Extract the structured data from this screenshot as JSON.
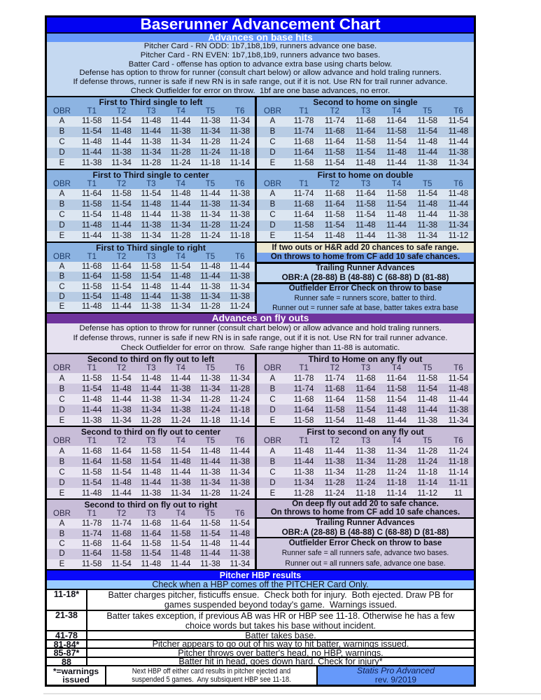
{
  "page_title": "Baserunner Advancement Chart",
  "col_headers": [
    "OBR",
    "T1",
    "T2",
    "T3",
    "T4",
    "T5",
    "T6"
  ],
  "base_hits": {
    "header": "Advances on base hits",
    "intro_lines": [
      "Pitcher Card - RN ODD: 1b7,1b8,1b9, runners advance one base.",
      "Pitcher Card - RN EVEN: 1b7,1b8,1b9, runners advance two bases.",
      "Batter Card - offense has option to advance extra base using charts below.",
      "Defense has option to throw for runner (consult chart below) or allow advance and hold traling runners.",
      "If defense throws, runner is safe if new RN is in safe range, out if it is not. Use RN for trail runner advance.",
      "Check Outfielder for error on throw.  1bf are one base advances, no error."
    ],
    "tables": {
      "first_third_left": {
        "title": "First to Third single to left",
        "rows": [
          [
            "A",
            "11-58",
            "11-54",
            "11-48",
            "11-44",
            "11-38",
            "11-34"
          ],
          [
            "B",
            "11-54",
            "11-48",
            "11-44",
            "11-38",
            "11-34",
            "11-38"
          ],
          [
            "C",
            "11-48",
            "11-44",
            "11-38",
            "11-34",
            "11-28",
            "11-24"
          ],
          [
            "D",
            "11-44",
            "11-38",
            "11-34",
            "11-28",
            "11-24",
            "11-18"
          ],
          [
            "E",
            "11-38",
            "11-34",
            "11-28",
            "11-24",
            "11-18",
            "11-14"
          ]
        ]
      },
      "second_home_single": {
        "title": "Second to home on single",
        "rows": [
          [
            "A",
            "11-78",
            "11-74",
            "11-68",
            "11-64",
            "11-58",
            "11-54"
          ],
          [
            "B",
            "11-74",
            "11-68",
            "11-64",
            "11-58",
            "11-54",
            "11-48"
          ],
          [
            "C",
            "11-68",
            "11-64",
            "11-58",
            "11-54",
            "11-48",
            "11-44"
          ],
          [
            "D",
            "11-64",
            "11-58",
            "11-54",
            "11-48",
            "11-44",
            "11-38"
          ],
          [
            "E",
            "11-58",
            "11-54",
            "11-48",
            "11-44",
            "11-38",
            "11-34"
          ]
        ]
      },
      "first_third_center": {
        "title": "First to Third single to center",
        "rows": [
          [
            "A",
            "11-64",
            "11-58",
            "11-54",
            "11-48",
            "11-44",
            "11-38"
          ],
          [
            "B",
            "11-58",
            "11-54",
            "11-48",
            "11-44",
            "11-38",
            "11-34"
          ],
          [
            "C",
            "11-54",
            "11-48",
            "11-44",
            "11-38",
            "11-34",
            "11-38"
          ],
          [
            "D",
            "11-48",
            "11-44",
            "11-38",
            "11-34",
            "11-28",
            "11-24"
          ],
          [
            "E",
            "11-44",
            "11-38",
            "11-34",
            "11-28",
            "11-24",
            "11-18"
          ]
        ]
      },
      "first_home_double": {
        "title": "First to home on double",
        "rows": [
          [
            "A",
            "11-74",
            "11-68",
            "11-64",
            "11-58",
            "11-54",
            "11-48"
          ],
          [
            "B",
            "11-68",
            "11-64",
            "11-58",
            "11-54",
            "11-48",
            "11-44"
          ],
          [
            "C",
            "11-64",
            "11-58",
            "11-54",
            "11-48",
            "11-44",
            "11-38"
          ],
          [
            "D",
            "11-58",
            "11-54",
            "11-48",
            "11-44",
            "11-38",
            "11-34"
          ],
          [
            "E",
            "11-54",
            "11-48",
            "11-44",
            "11-38",
            "11-34",
            "11-12"
          ]
        ]
      },
      "first_third_right": {
        "title": "First to Third single to right",
        "rows": [
          [
            "A",
            "11-68",
            "11-64",
            "11-58",
            "11-54",
            "11-48",
            "11-44"
          ],
          [
            "B",
            "11-64",
            "11-58",
            "11-54",
            "11-48",
            "11-44",
            "11-38"
          ],
          [
            "C",
            "11-58",
            "11-54",
            "11-48",
            "11-44",
            "11-38",
            "11-34"
          ],
          [
            "D",
            "11-54",
            "11-48",
            "11-44",
            "11-38",
            "11-34",
            "11-38"
          ],
          [
            "E",
            "11-48",
            "11-44",
            "11-38",
            "11-34",
            "11-28",
            "11-24"
          ]
        ]
      }
    },
    "notes": {
      "two_outs": "If two outs or H&R add 20 chances to safe range.",
      "cf_throws": "On throws to home from CF add 10 safe chances.",
      "trailing_title": "Trailing Runner Advances",
      "trailing_ranges": "OBR:A (28-88) B (48-88) C (68-88) D (81-88)",
      "error_title": "Outfielder Error Check on throw to base",
      "error_safe": "Runner safe = runners score, batter to third.",
      "error_out": "Runner out = runner safe at base, batter takes extra base"
    }
  },
  "fly_outs": {
    "header": "Advances on fly outs",
    "intro_lines": [
      "Defense has option to throw for runner (consult chart below) or allow advance and hold traling runners.",
      "If defense throws, runner is safe if new RN is in safe range, out if it is not. Use RN for trail runner advance.",
      "Check Outfielder for error on throw.  Safe range higher than 11-88 is automatic."
    ],
    "tables": {
      "second_third_left": {
        "title": "Second to third on fly out to left",
        "rows": [
          [
            "A",
            "11-58",
            "11-54",
            "11-48",
            "11-44",
            "11-38",
            "11-34"
          ],
          [
            "B",
            "11-54",
            "11-48",
            "11-44",
            "11-38",
            "11-34",
            "11-28"
          ],
          [
            "C",
            "11-48",
            "11-44",
            "11-38",
            "11-34",
            "11-28",
            "11-24"
          ],
          [
            "D",
            "11-44",
            "11-38",
            "11-34",
            "11-38",
            "11-24",
            "11-18"
          ],
          [
            "E",
            "11-38",
            "11-34",
            "11-28",
            "11-24",
            "11-18",
            "11-14"
          ]
        ]
      },
      "third_home_any": {
        "title": "Third to Home on any fly out",
        "rows": [
          [
            "A",
            "11-78",
            "11-74",
            "11-68",
            "11-64",
            "11-58",
            "11-54"
          ],
          [
            "B",
            "11-74",
            "11-68",
            "11-64",
            "11-58",
            "11-54",
            "11-48"
          ],
          [
            "C",
            "11-68",
            "11-64",
            "11-58",
            "11-54",
            "11-48",
            "11-44"
          ],
          [
            "D",
            "11-64",
            "11-58",
            "11-54",
            "11-48",
            "11-44",
            "11-38"
          ],
          [
            "E",
            "11-58",
            "11-54",
            "11-48",
            "11-44",
            "11-38",
            "11-34"
          ]
        ]
      },
      "second_third_center": {
        "title": "Second to third on fly out to center",
        "rows": [
          [
            "A",
            "11-68",
            "11-64",
            "11-58",
            "11-54",
            "11-48",
            "11-44"
          ],
          [
            "B",
            "11-64",
            "11-58",
            "11-54",
            "11-48",
            "11-44",
            "11-38"
          ],
          [
            "C",
            "11-58",
            "11-54",
            "11-48",
            "11-44",
            "11-38",
            "11-34"
          ],
          [
            "D",
            "11-54",
            "11-48",
            "11-44",
            "11-38",
            "11-34",
            "11-38"
          ],
          [
            "E",
            "11-48",
            "11-44",
            "11-38",
            "11-34",
            "11-28",
            "11-24"
          ]
        ]
      },
      "first_second_any": {
        "title": "First to second on any fly out",
        "rows": [
          [
            "A",
            "11-48",
            "11-44",
            "11-38",
            "11-34",
            "11-28",
            "11-24"
          ],
          [
            "B",
            "11-44",
            "11-38",
            "11-34",
            "11-28",
            "11-24",
            "11-18"
          ],
          [
            "C",
            "11-38",
            "11-34",
            "11-28",
            "11-24",
            "11-18",
            "11-14"
          ],
          [
            "D",
            "11-34",
            "11-28",
            "11-24",
            "11-18",
            "11-14",
            "11-11"
          ],
          [
            "E",
            "11-28",
            "11-24",
            "11-18",
            "11-14",
            "11-12",
            "11"
          ]
        ]
      },
      "second_third_right": {
        "title": "Second to third on fly out to right",
        "rows": [
          [
            "A",
            "11-78",
            "11-74",
            "11-68",
            "11-64",
            "11-58",
            "11-54"
          ],
          [
            "B",
            "11-74",
            "11-68",
            "11-64",
            "11-58",
            "11-54",
            "11-48"
          ],
          [
            "C",
            "11-68",
            "11-64",
            "11-58",
            "11-54",
            "11-48",
            "11-44"
          ],
          [
            "D",
            "11-64",
            "11-58",
            "11-54",
            "11-48",
            "11-44",
            "11-38"
          ],
          [
            "E",
            "11-58",
            "11-54",
            "11-48",
            "11-44",
            "11-38",
            "11-34"
          ]
        ]
      }
    },
    "notes": {
      "deep_fly": "On deep fly out add 20 to safe chance.",
      "cf_throws": "On throws to home from CF add 10 safe chances.",
      "trailing_title": "Trailing Runner Advances",
      "trailing_ranges": "OBR:A (28-88) B (48-88) C (68-88) D (81-88)",
      "error_title": "Outfielder Error Check on throw to base",
      "error_safe": "Runner safe = all runners safe, advance two bases.",
      "error_out": "Runner out = all runners safe, advance one base."
    }
  },
  "hbp": {
    "header": "Pitcher HBP results",
    "subheader": "Check when a HBP comes off the PITCHER Card Only.",
    "rows": [
      {
        "range": "11-18*",
        "lines": [
          "Batter charges pitcher, fisticuffs ensue.  Check both for injury.  Both ejected. Draw PB for",
          "games suspended beyond today's game.  Warnings issued."
        ]
      },
      {
        "range": "21-38",
        "lines": [
          "Batter takes exception, if previous AB was HR or HBP see 11-18. Otherwise he has a few",
          "choice words but takes his base without incident."
        ]
      },
      {
        "range": "41-78",
        "lines": [
          "Batter takes base."
        ]
      },
      {
        "range": "81-84*",
        "lines": [
          "Pitcher appears to go out of his way to hit batter, warnings issued."
        ]
      },
      {
        "range": "85-87*",
        "lines": [
          "Pitcher throws over batter's head, no HBP, warnings."
        ]
      },
      {
        "range": "88",
        "lines": [
          "Batter hit in head, goes down hard. Check for injury*"
        ]
      }
    ],
    "footer": {
      "left_lines": [
        "*=warnings",
        "issued"
      ],
      "middle_lines": [
        "Next HBP off either card results in pitcher ejected and",
        "suspended 5 games.  Any subsiquent HBP see 11-18."
      ],
      "brand": "Statis Pro Advanced",
      "revision": "rev. 9/2019"
    }
  },
  "colors": {
    "title_bar": "#0303f2",
    "base_hits_bar": "#6699fa",
    "fly_outs_bar": "#6f339d",
    "hbp_bar": "#0909fa",
    "blue_table_header": "#8db4e2",
    "blue_row_light": "#dce6f1",
    "blue_row_dark": "#b8cce4",
    "purple_table_header": "#c8bdd8",
    "purple_row_light": "#e8e4f1",
    "purple_row_dark": "#d0c9e0",
    "tan_note": "#ece8d2",
    "check_bar": "#99ccff",
    "brand_box": "#6699fa"
  }
}
